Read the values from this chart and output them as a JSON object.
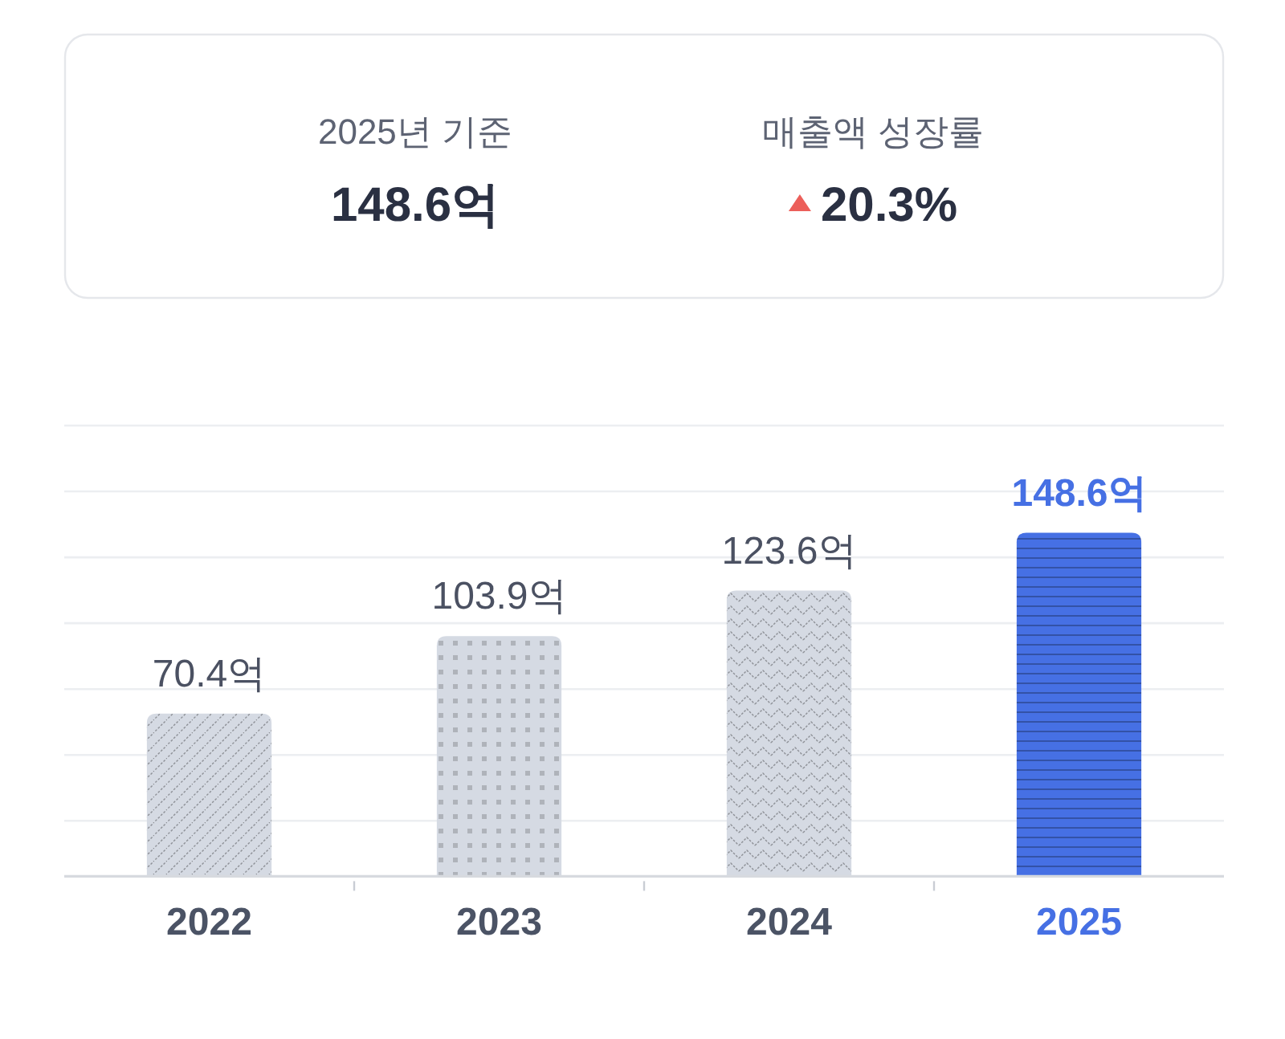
{
  "chart_data": [
    {
      "type": "other",
      "annotations": [
        "2025년 기준",
        "148.6억",
        "매출액 성장률",
        "20.3%"
      ]
    },
    {
      "type": "bar",
      "categories": [
        "2022",
        "2023",
        "2024",
        "2025"
      ],
      "values": [
        70.4,
        103.9,
        123.6,
        148.6
      ],
      "colors": [
        "#d5dae3",
        "#d5dae3",
        "#d5dae3",
        "#4670e4"
      ],
      "value_labels": [
        "70.4억",
        "103.9억",
        "123.6억",
        "148.6억"
      ],
      "ylim": [
        0,
        195
      ],
      "yticks": [
        24,
        52.5,
        81,
        109.5,
        138,
        166.5,
        195
      ],
      "grid": "y",
      "tick_labels": "x"
    }
  ]
}
